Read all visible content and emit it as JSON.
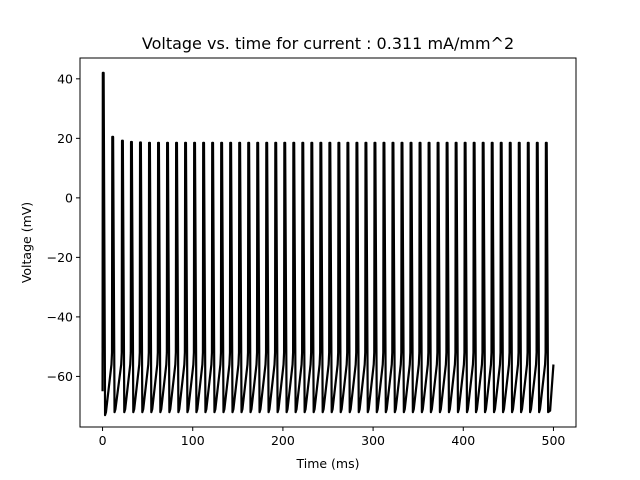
{
  "chart_data": {
    "type": "line",
    "title": "Voltage vs. time for current : 0.311 mA/mm^2",
    "xlabel": "Time (ms)",
    "ylabel": "Voltage (mV)",
    "xlim": [
      -25,
      525
    ],
    "ylim": [
      -77,
      47
    ],
    "x_ticks": [
      0,
      100,
      200,
      300,
      400,
      500
    ],
    "y_ticks": [
      -60,
      -40,
      -20,
      0,
      20,
      40
    ],
    "x_tick_labels": [
      "0",
      "100",
      "200",
      "300",
      "400",
      "500"
    ],
    "y_tick_labels": [
      "−60",
      "−40",
      "−20",
      "0",
      "20",
      "40"
    ],
    "grid": false,
    "line_color": "#000000",
    "series": [
      {
        "spike_times": [
          0,
          10.5,
          21.3,
          31.3,
          41.3,
          51.3,
          61.3,
          71.3,
          81.3,
          91.3,
          101.3,
          111.3,
          121.3,
          131.3,
          141.3,
          151.3,
          161.3,
          171.3,
          181.3,
          191.3,
          201.3,
          211.3,
          221.3,
          231.3,
          241.3,
          251.3,
          261.3,
          271.3,
          281.3,
          291.3,
          301.3,
          311.3,
          321.3,
          331.3,
          341.3,
          351.3,
          361.3,
          371.3,
          381.3,
          391.3,
          401.3,
          411.3,
          421.3,
          431.3,
          441.3,
          451.3,
          461.3,
          471.3,
          481.3,
          491.3
        ],
        "spike_peaks": [
          42,
          20.5,
          19.2,
          18.8,
          18.6,
          18.5,
          18.5,
          18.5,
          18.5,
          18.5,
          18.5,
          18.5,
          18.5,
          18.5,
          18.5,
          18.5,
          18.5,
          18.5,
          18.5,
          18.5,
          18.5,
          18.5,
          18.5,
          18.5,
          18.5,
          18.5,
          18.5,
          18.5,
          18.5,
          18.5,
          18.5,
          18.5,
          18.5,
          18.5,
          18.5,
          18.5,
          18.5,
          18.5,
          18.5,
          18.5,
          18.5,
          18.5,
          18.5,
          18.5,
          18.5,
          18.5,
          18.5,
          18.5,
          18.5,
          18.5
        ],
        "start_voltage": -65,
        "first_trough": -73,
        "trough": -72,
        "pre_spike": -56,
        "end": [
          500,
          -56
        ]
      }
    ]
  }
}
